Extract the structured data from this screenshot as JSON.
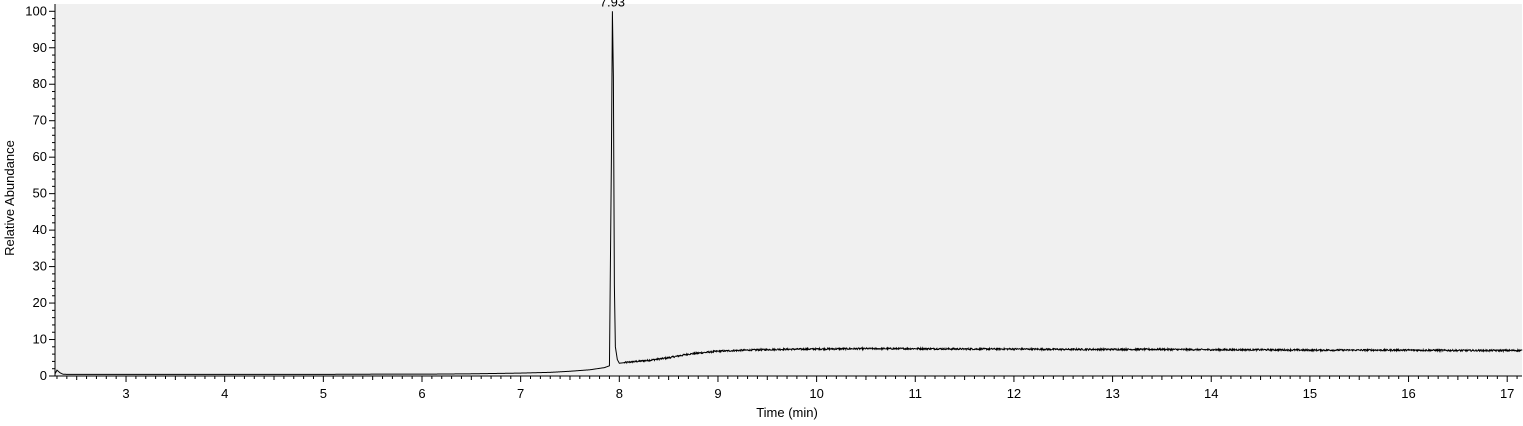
{
  "chart_data": {
    "type": "line",
    "title": "",
    "xlabel": "Time (min)",
    "ylabel": "Relative Abundance",
    "xlim": [
      2.28,
      17.15
    ],
    "ylim": [
      0,
      102
    ],
    "x_ticks": [
      3,
      4,
      5,
      6,
      7,
      8,
      9,
      10,
      11,
      12,
      13,
      14,
      15,
      16,
      17
    ],
    "y_ticks": [
      0,
      10,
      20,
      30,
      40,
      50,
      60,
      70,
      80,
      90,
      100
    ],
    "grid": false,
    "legend": "none",
    "plot_background": "#f0f0f0",
    "line_color": "#000000",
    "annotations": [
      {
        "x": 7.93,
        "y": 100,
        "text": "7.93"
      }
    ],
    "series": [
      {
        "x": [
          2.28,
          2.3,
          2.33,
          2.36,
          2.4,
          2.6,
          3.0,
          3.5,
          4.0,
          4.5,
          5.0,
          5.5,
          6.0,
          6.5,
          7.0,
          7.3,
          7.5,
          7.7,
          7.85,
          7.9,
          7.92,
          7.93,
          7.94,
          7.95,
          7.96,
          7.98,
          8.0,
          8.1,
          8.3,
          8.5,
          8.7,
          9.0,
          9.3,
          9.6,
          10.0,
          10.5,
          11.0,
          11.5,
          12.0,
          12.5,
          13.0,
          13.5,
          14.0,
          14.5,
          15.0,
          15.5,
          16.0,
          16.5,
          17.0,
          17.15
        ],
        "y": [
          0.6,
          1.6,
          0.9,
          0.5,
          0.45,
          0.45,
          0.45,
          0.45,
          0.45,
          0.45,
          0.45,
          0.5,
          0.5,
          0.6,
          0.8,
          1.0,
          1.3,
          1.7,
          2.3,
          2.8,
          60,
          100,
          82,
          25,
          8,
          4.5,
          3.5,
          3.8,
          4.3,
          5.0,
          6.0,
          6.8,
          7.1,
          7.3,
          7.4,
          7.5,
          7.5,
          7.4,
          7.4,
          7.3,
          7.3,
          7.3,
          7.2,
          7.2,
          7.1,
          7.1,
          7.1,
          7.0,
          7.0,
          7.0
        ]
      }
    ]
  }
}
